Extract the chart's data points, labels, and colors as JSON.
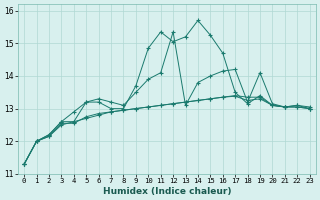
{
  "xlabel": "Humidex (Indice chaleur)",
  "bg_color": "#d8f0ee",
  "grid_color": "#b0d8d4",
  "line_color": "#1a7a6e",
  "xlim": [
    -0.5,
    23.5
  ],
  "ylim": [
    11,
    16.2
  ],
  "yticks": [
    11,
    12,
    13,
    14,
    15,
    16
  ],
  "xticks": [
    0,
    1,
    2,
    3,
    4,
    5,
    6,
    7,
    8,
    9,
    10,
    11,
    12,
    13,
    14,
    15,
    16,
    17,
    18,
    19,
    20,
    21,
    22,
    23
  ],
  "series": [
    [
      11.3,
      12.0,
      12.2,
      12.6,
      12.6,
      13.2,
      13.2,
      13.0,
      13.0,
      13.7,
      14.85,
      15.35,
      15.05,
      15.2,
      15.7,
      15.25,
      14.7,
      13.5,
      13.15,
      13.4,
      13.1,
      13.05,
      13.1,
      13.0
    ],
    [
      11.3,
      12.0,
      12.2,
      12.6,
      12.9,
      13.2,
      13.3,
      13.2,
      13.1,
      13.5,
      13.9,
      14.1,
      15.35,
      13.1,
      13.8,
      14.0,
      14.15,
      14.2,
      13.2,
      14.1,
      13.15,
      13.05,
      13.1,
      13.05
    ],
    [
      11.3,
      12.0,
      12.15,
      12.55,
      12.55,
      12.75,
      12.85,
      12.9,
      12.95,
      13.0,
      13.05,
      13.1,
      13.15,
      13.2,
      13.25,
      13.3,
      13.35,
      13.4,
      13.35,
      13.35,
      13.1,
      13.05,
      13.05,
      13.0
    ],
    [
      11.3,
      12.0,
      12.15,
      12.5,
      12.6,
      12.7,
      12.8,
      12.9,
      12.95,
      13.0,
      13.05,
      13.1,
      13.15,
      13.2,
      13.25,
      13.3,
      13.35,
      13.38,
      13.25,
      13.3,
      13.1,
      13.05,
      13.05,
      13.0
    ]
  ]
}
